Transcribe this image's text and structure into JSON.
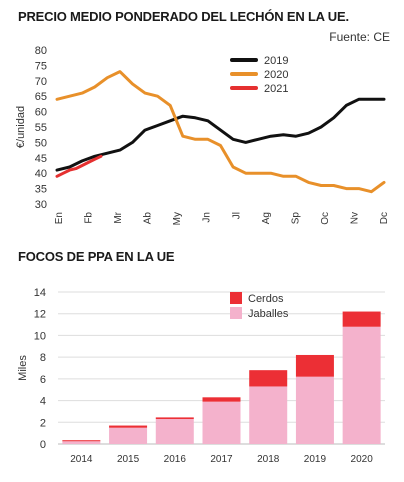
{
  "titles": {
    "chart1": "PRECIO MEDIO PONDERADO DEL LECHÓN EN LA UE.",
    "chart2": "FOCOS DE PPA EN LA UE",
    "source": "Fuente: CE"
  },
  "colors": {
    "s2019": "#111111",
    "s2020": "#e8902a",
    "s2021": "#e53030",
    "cerdos": "#ec2f35",
    "jabalies": "#f4b2cc",
    "grid": "#dddddd"
  },
  "chart_data": [
    {
      "type": "line",
      "title": "PRECIO MEDIO PONDERADO DEL LECHÓN EN LA UE.",
      "ylabel": "€/unidad",
      "xlabel": "",
      "ylim": [
        30,
        80
      ],
      "yticks": [
        30,
        35,
        40,
        45,
        50,
        55,
        60,
        65,
        70,
        75,
        80
      ],
      "x_tick_labels": [
        "En",
        "Fb",
        "Mr",
        "Ab",
        "My",
        "Jn",
        "Jl",
        "Ag",
        "Sp",
        "Oc",
        "Nv",
        "Dc"
      ],
      "x_unit": "week",
      "legend_position": "top-right",
      "series": [
        {
          "name": "2019",
          "x": [
            1,
            3,
            5,
            7,
            9,
            11,
            13,
            15,
            17,
            19,
            21,
            23,
            25,
            27,
            29,
            31,
            33,
            35,
            37,
            39,
            41,
            43,
            45,
            47,
            49,
            51,
            53
          ],
          "values": [
            41,
            42,
            44,
            45.5,
            46.5,
            47.5,
            50,
            54,
            55.5,
            57,
            58.5,
            58,
            57,
            54,
            51,
            50,
            51,
            52,
            52.5,
            52,
            53,
            55,
            58,
            62,
            64,
            64,
            64
          ]
        },
        {
          "name": "2020",
          "x": [
            1,
            3,
            5,
            7,
            9,
            11,
            13,
            15,
            17,
            19,
            21,
            23,
            25,
            27,
            29,
            31,
            33,
            35,
            37,
            39,
            41,
            43,
            45,
            47,
            49,
            51,
            53
          ],
          "values": [
            64,
            65,
            66,
            68,
            71,
            73,
            69,
            66,
            65,
            62,
            52,
            51,
            51,
            49,
            42,
            40,
            40,
            40,
            39,
            39,
            37,
            36,
            36,
            35,
            35,
            34,
            37
          ]
        },
        {
          "name": "2021",
          "x": [
            1,
            2,
            3,
            4,
            5,
            6,
            7,
            8
          ],
          "values": [
            39,
            40,
            41,
            41.5,
            42.5,
            43.5,
            44.5,
            45.5
          ]
        }
      ]
    },
    {
      "type": "bar",
      "stacked": true,
      "title": "FOCOS DE PPA EN LA UE",
      "ylabel": "Miles",
      "xlabel": "",
      "ylim": [
        0,
        14
      ],
      "yticks": [
        0,
        2,
        4,
        6,
        8,
        10,
        12,
        14
      ],
      "categories": [
        "2014",
        "2015",
        "2016",
        "2017",
        "2018",
        "2019",
        "2020"
      ],
      "legend_position": "top-center",
      "series": [
        {
          "name": "Jaballes",
          "values": [
            0.25,
            1.5,
            2.3,
            3.9,
            5.3,
            6.2,
            10.8
          ]
        },
        {
          "name": "Cerdos",
          "values": [
            0.1,
            0.2,
            0.15,
            0.4,
            1.5,
            2.0,
            1.4
          ]
        }
      ]
    }
  ]
}
